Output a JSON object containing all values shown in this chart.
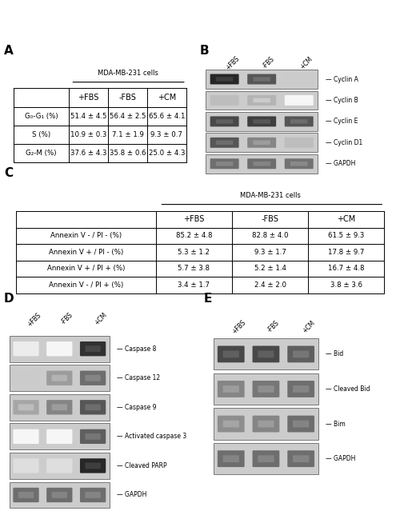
{
  "panel_A": {
    "label": "A",
    "header": "MDA-MB-231 cells",
    "columns": [
      "+FBS",
      "-FBS",
      "+CM"
    ],
    "rows": [
      {
        "label": "G₀-G₁ (%)",
        "values": [
          "51.4 ± 4.5",
          "56.4 ± 2.5",
          "65.6 ± 4.1"
        ]
      },
      {
        "label": "S (%)",
        "values": [
          "10.9 ± 0.3",
          "7.1 ± 1.9",
          "9.3 ± 0.7"
        ]
      },
      {
        "label": "G₂-M (%)",
        "values": [
          "37.6 ± 4.3",
          "35.8 ± 0.6",
          "25.0 ± 4.3"
        ]
      }
    ]
  },
  "panel_B": {
    "label": "B",
    "col_labels": [
      "+FBS",
      "-FBS",
      "+CM"
    ],
    "bands": [
      {
        "name": "Cyclin A",
        "intensities": [
          0.92,
          0.72,
          0.22
        ]
      },
      {
        "name": "Cyclin B",
        "intensities": [
          0.28,
          0.32,
          0.04
        ]
      },
      {
        "name": "Cyclin E",
        "intensities": [
          0.78,
          0.82,
          0.72
        ]
      },
      {
        "name": "Cyclin D1",
        "intensities": [
          0.72,
          0.52,
          0.28
        ]
      },
      {
        "name": "GAPDH",
        "intensities": [
          0.62,
          0.62,
          0.6
        ]
      }
    ]
  },
  "panel_C": {
    "label": "C",
    "header": "MDA-MB-231 cells",
    "columns": [
      "+FBS",
      "-FBS",
      "+CM"
    ],
    "rows": [
      {
        "label": "Annexin V - / PI - (%)",
        "values": [
          "85.2 ± 4.8",
          "82.8 ± 4.0",
          "61.5 ± 9.3"
        ]
      },
      {
        "label": "Annexin V + / PI - (%)",
        "values": [
          "5.3 ± 1.2",
          "9.3 ± 1.7",
          "17.8 ± 9.7"
        ]
      },
      {
        "label": "Annexin V + / PI + (%)",
        "values": [
          "5.7 ± 3.8",
          "5.2 ± 1.4",
          "16.7 ± 4.8"
        ]
      },
      {
        "label": "Annexin V - / PI + (%)",
        "values": [
          "3.4 ± 1.7",
          "2.4 ± 2.0",
          "3.8 ± 3.6"
        ]
      }
    ]
  },
  "panel_D": {
    "label": "D",
    "col_labels": [
      "+FBS",
      "-FBS",
      "+CM"
    ],
    "bands": [
      {
        "name": "Caspase 8",
        "intensities": [
          0.08,
          0.04,
          0.88
        ]
      },
      {
        "name": "Caspase 12",
        "intensities": [
          0.22,
          0.42,
          0.62
        ]
      },
      {
        "name": "Caspase 9",
        "intensities": [
          0.38,
          0.52,
          0.72
        ]
      },
      {
        "name": "Activated caspase 3",
        "intensities": [
          0.04,
          0.04,
          0.68
        ]
      },
      {
        "name": "Cleaved PARP",
        "intensities": [
          0.14,
          0.14,
          0.92
        ]
      },
      {
        "name": "GAPDH",
        "intensities": [
          0.62,
          0.62,
          0.62
        ]
      }
    ]
  },
  "panel_E": {
    "label": "E",
    "col_labels": [
      "+FBS",
      "-FBS",
      "+CM"
    ],
    "bands": [
      {
        "name": "Bid",
        "intensities": [
          0.78,
          0.78,
          0.68
        ]
      },
      {
        "name": "Cleaved Bid",
        "intensities": [
          0.52,
          0.58,
          0.62
        ]
      },
      {
        "name": "Bim",
        "intensities": [
          0.48,
          0.52,
          0.62
        ]
      },
      {
        "name": "GAPDH",
        "intensities": [
          0.62,
          0.62,
          0.62
        ]
      }
    ]
  }
}
